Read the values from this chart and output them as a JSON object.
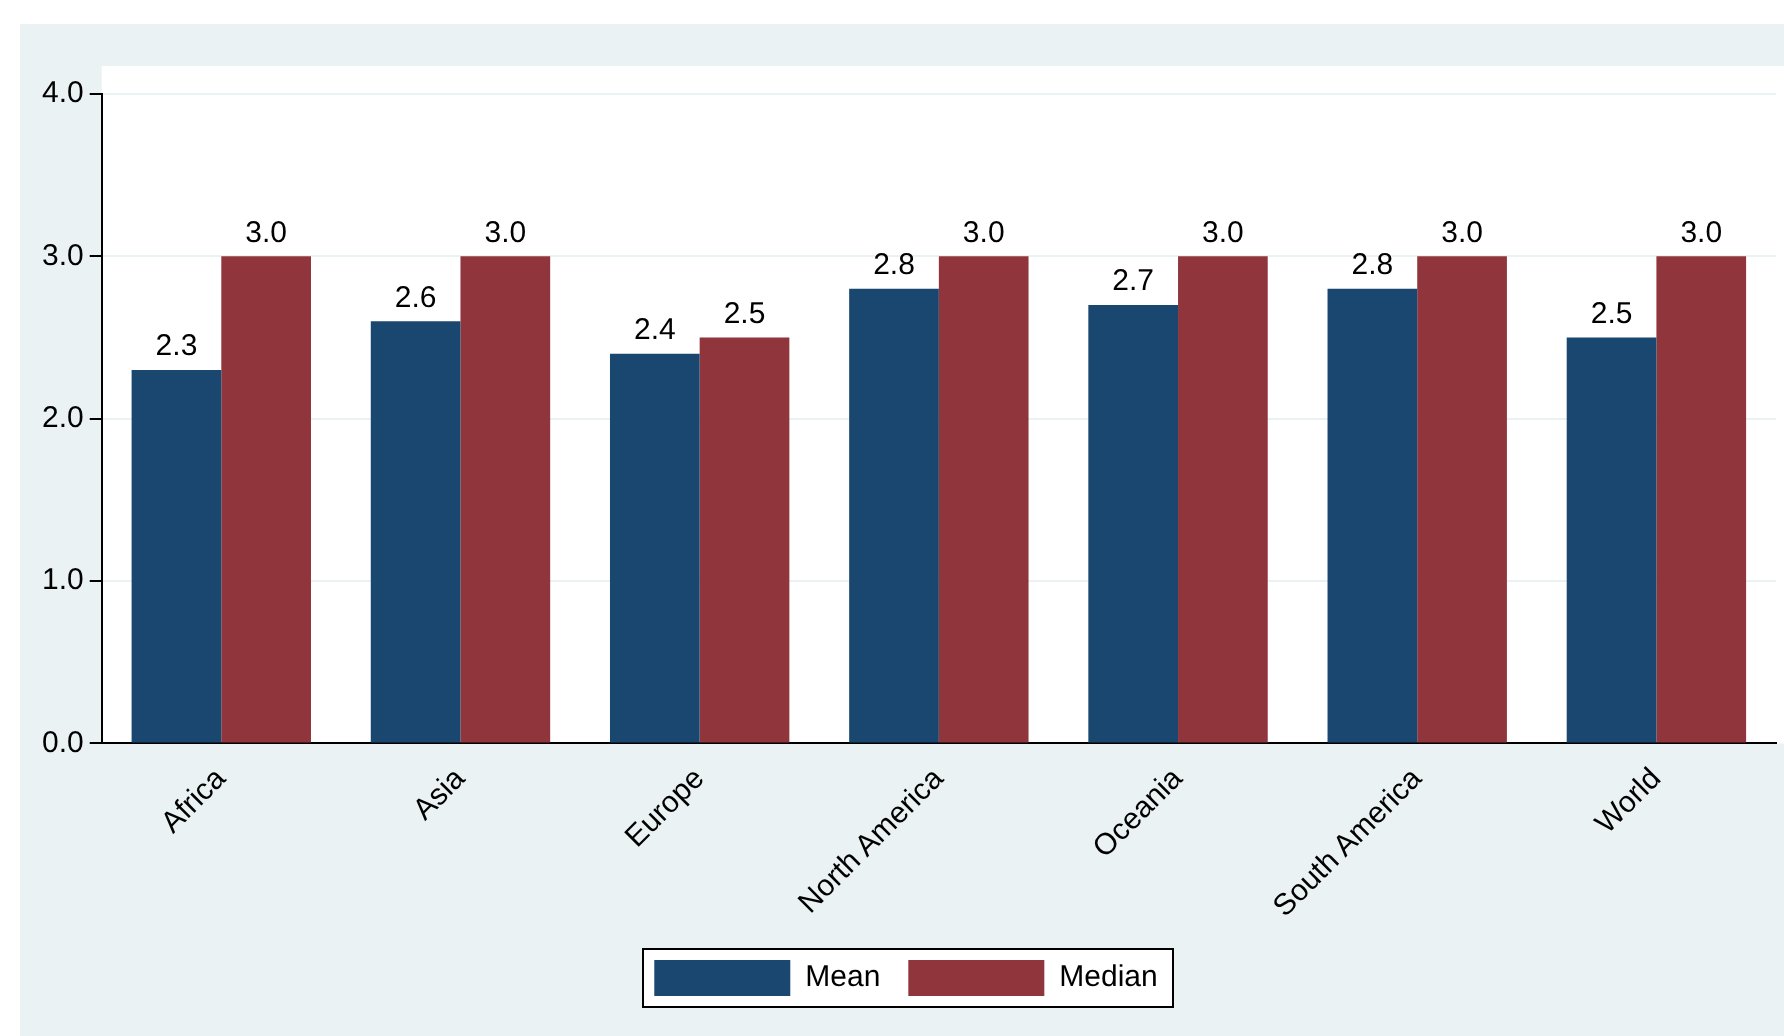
{
  "chart_data": {
    "type": "bar",
    "categories": [
      "Africa",
      "Asia",
      "Europe",
      "North America",
      "Oceania",
      "South America",
      "World"
    ],
    "series": [
      {
        "name": "Mean",
        "color": "#1a476f",
        "values": [
          2.3,
          2.6,
          2.4,
          2.8,
          2.7,
          2.8,
          2.5
        ],
        "value_labels": [
          "2.3",
          "2.6",
          "2.4",
          "2.8",
          "2.7",
          "2.8",
          "2.5"
        ]
      },
      {
        "name": "Median",
        "color": "#90353b",
        "values": [
          3.0,
          3.0,
          2.5,
          3.0,
          3.0,
          3.0,
          3.0
        ],
        "value_labels": [
          "3.0",
          "3.0",
          "2.5",
          "3.0",
          "3.0",
          "3.0",
          "3.0"
        ]
      }
    ],
    "ylim": [
      0,
      4
    ],
    "yticks": [
      {
        "value": 0,
        "label": "0.0"
      },
      {
        "value": 1,
        "label": "1.0"
      },
      {
        "value": 2,
        "label": "2.0"
      },
      {
        "value": 3,
        "label": "3.0"
      },
      {
        "value": 4,
        "label": "4.0"
      }
    ],
    "grid": "y",
    "legend": "bottom"
  }
}
